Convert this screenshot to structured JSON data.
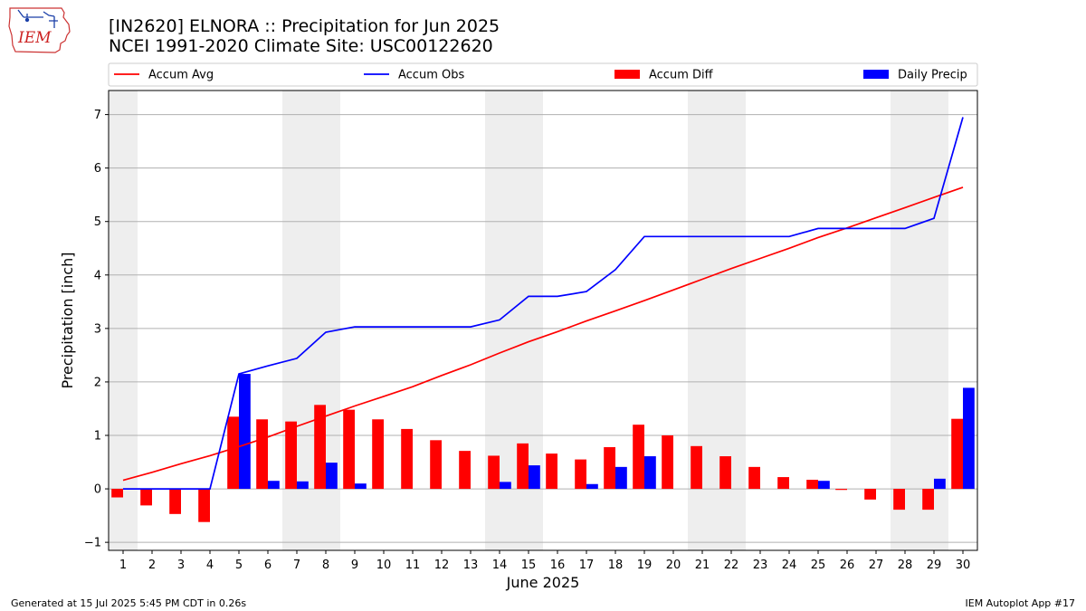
{
  "header": {
    "title_line1": "[IN2620] ELNORA :: Precipitation for Jun 2025",
    "title_line2": "NCEI 1991-2020 Climate Site: USC00122620"
  },
  "logo": {
    "text": "IEM"
  },
  "footer": {
    "left": "Generated at 15 Jul 2025 5:45 PM CDT in 0.26s",
    "right": "IEM Autoplot App #17"
  },
  "colors": {
    "avg": "#ff0000",
    "obs": "#0000ff",
    "diff": "#ff0000",
    "daily": "#0000ff",
    "weekend_shade": "#eeeeee",
    "grid": "#b0b0b0"
  },
  "chart_data": {
    "type": "bar",
    "xlabel": "June 2025",
    "ylabel": "Precipitation [inch]",
    "ylim": [
      -1.15,
      7.45
    ],
    "yticks": [
      -1,
      0,
      1,
      2,
      3,
      4,
      5,
      6,
      7
    ],
    "grid": true,
    "legend_position": "top",
    "legend": [
      "Accum Avg",
      "Accum Obs",
      "Accum Diff",
      "Daily Precip"
    ],
    "shaded_days": [
      1,
      7,
      8,
      14,
      15,
      21,
      22,
      28,
      29
    ],
    "x": [
      1,
      2,
      3,
      4,
      5,
      6,
      7,
      8,
      9,
      10,
      11,
      12,
      13,
      14,
      15,
      16,
      17,
      18,
      19,
      20,
      21,
      22,
      23,
      24,
      25,
      26,
      27,
      28,
      29,
      30
    ],
    "series": [
      {
        "name": "Accum Avg",
        "kind": "line",
        "values": [
          0.16,
          0.31,
          0.47,
          0.62,
          0.79,
          0.97,
          1.17,
          1.36,
          1.55,
          1.73,
          1.91,
          2.12,
          2.32,
          2.54,
          2.75,
          2.94,
          3.14,
          3.33,
          3.52,
          3.72,
          3.92,
          4.12,
          4.31,
          4.5,
          4.7,
          4.88,
          5.07,
          5.26,
          5.45,
          5.64
        ]
      },
      {
        "name": "Accum Obs",
        "kind": "line",
        "values": [
          0.0,
          0.0,
          0.0,
          0.0,
          2.15,
          2.3,
          2.44,
          2.93,
          3.03,
          3.03,
          3.03,
          3.03,
          3.03,
          3.16,
          3.6,
          3.6,
          3.69,
          4.1,
          4.72,
          4.72,
          4.72,
          4.72,
          4.72,
          4.72,
          4.87,
          4.87,
          4.87,
          4.87,
          5.06,
          6.95
        ]
      },
      {
        "name": "Accum Diff",
        "kind": "bar",
        "values": [
          -0.16,
          -0.31,
          -0.47,
          -0.62,
          1.35,
          1.3,
          1.26,
          1.57,
          1.48,
          1.3,
          1.12,
          0.91,
          0.71,
          0.62,
          0.85,
          0.66,
          0.55,
          0.78,
          1.2,
          1.0,
          0.8,
          0.61,
          0.41,
          0.22,
          0.17,
          -0.02,
          -0.2,
          -0.39,
          -0.39,
          1.31
        ]
      },
      {
        "name": "Daily Precip",
        "kind": "bar",
        "values": [
          0,
          0,
          0,
          0,
          2.15,
          0.15,
          0.14,
          0.49,
          0.1,
          0,
          0,
          0,
          0,
          0.13,
          0.44,
          0,
          0.09,
          0.41,
          0.61,
          0,
          0,
          0,
          0,
          0,
          0.15,
          0,
          0,
          0,
          0.19,
          1.89
        ]
      }
    ]
  }
}
